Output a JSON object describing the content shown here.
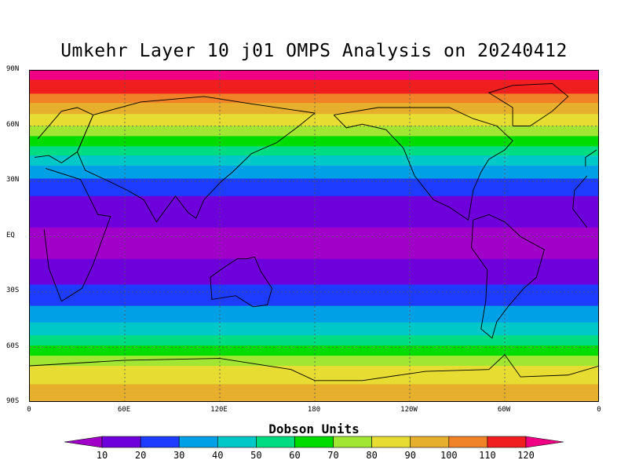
{
  "title": "Umkehr Layer 10 j01 OMPS Analysis on 20240412",
  "lat_axis": [
    "90N",
    "60N",
    "30N",
    "EQ",
    "30S",
    "60S",
    "90S"
  ],
  "lon_axis": [
    "0",
    "60E",
    "120E",
    "180",
    "120W",
    "60W",
    "0"
  ],
  "legend": {
    "title": "Dobson Units",
    "labels": [
      "10",
      "20",
      "30",
      "40",
      "50",
      "60",
      "70",
      "80",
      "90",
      "100",
      "110",
      "120"
    ],
    "colors": [
      "#a000c8",
      "#6e00dc",
      "#1e3cff",
      "#00a0e6",
      "#00c8c8",
      "#00dc82",
      "#00dc00",
      "#a0e632",
      "#e6dc32",
      "#e6af2d",
      "#f08228",
      "#f01e1e",
      "#f00082"
    ]
  },
  "chart_data": {
    "type": "heatmap",
    "title": "Umkehr Layer 10 j01 OMPS Analysis on 20240412",
    "units": "Dobson Units",
    "x_range_deg": [
      0,
      360
    ],
    "y_range_deg": [
      -90,
      90
    ],
    "xticks": [
      "0",
      "60E",
      "120E",
      "180",
      "120W",
      "60W",
      "0"
    ],
    "yticks": [
      "90N",
      "60N",
      "30N",
      "EQ",
      "30S",
      "60S",
      "90S"
    ],
    "contour_levels": [
      10,
      20,
      30,
      40,
      50,
      60,
      70,
      80,
      90,
      100,
      110,
      120
    ],
    "zonal_profile": [
      {
        "lat": 90,
        "value": 125
      },
      {
        "lat": 80,
        "value": 115
      },
      {
        "lat": 70,
        "value": 95
      },
      {
        "lat": 60,
        "value": 80
      },
      {
        "lat": 50,
        "value": 62
      },
      {
        "lat": 40,
        "value": 42
      },
      {
        "lat": 30,
        "value": 28
      },
      {
        "lat": 20,
        "value": 18
      },
      {
        "lat": 10,
        "value": 12
      },
      {
        "lat": 0,
        "value": 8
      },
      {
        "lat": -10,
        "value": 9
      },
      {
        "lat": -20,
        "value": 14
      },
      {
        "lat": -30,
        "value": 24
      },
      {
        "lat": -40,
        "value": 32
      },
      {
        "lat": -50,
        "value": 44
      },
      {
        "lat": -60,
        "value": 62
      },
      {
        "lat": -70,
        "value": 80
      },
      {
        "lat": -80,
        "value": 90
      },
      {
        "lat": -90,
        "value": 90
      }
    ]
  }
}
